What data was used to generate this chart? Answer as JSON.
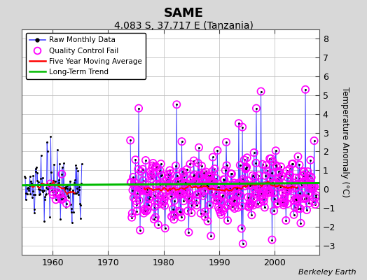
{
  "title": "SAME",
  "subtitle": "4.083 S, 37.717 E (Tanzania)",
  "ylabel": "Temperature Anomaly (°C)",
  "credit": "Berkeley Earth",
  "ylim": [
    -3.5,
    8.5
  ],
  "xlim": [
    1954.5,
    2008
  ],
  "xticks": [
    1960,
    1970,
    1980,
    1990,
    2000
  ],
  "yticks": [
    -3,
    -2,
    -1,
    0,
    1,
    2,
    3,
    4,
    5,
    6,
    7,
    8
  ],
  "bg_color": "#d8d8d8",
  "plot_bg_color": "#ffffff",
  "raw_color": "#4444ff",
  "qc_color": "#ff00ff",
  "ma_color": "#ff0000",
  "trend_color": "#00bb00",
  "title_fontsize": 13,
  "subtitle_fontsize": 10
}
